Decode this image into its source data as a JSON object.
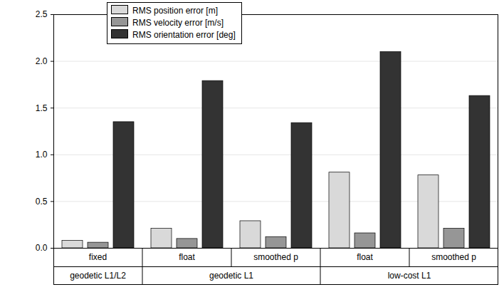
{
  "chart_data": {
    "type": "bar",
    "categories": [
      "fixed",
      "float",
      "smoothed p",
      "float",
      "smoothed p"
    ],
    "category_groups": [
      "geodetic L1/L2",
      "geodetic L1",
      "geodetic L1",
      "low-cost L1",
      "low-cost L1"
    ],
    "series": [
      {
        "name": "RMS position error [m]",
        "color": "#d9d9d9",
        "values": [
          0.08,
          0.21,
          0.29,
          0.81,
          0.78
        ]
      },
      {
        "name": "RMS velocity error [m/s]",
        "color": "#969696",
        "values": [
          0.06,
          0.1,
          0.12,
          0.16,
          0.21
        ]
      },
      {
        "name": "RMS orientation error [deg]",
        "color": "#333333",
        "values": [
          1.35,
          1.79,
          1.34,
          2.1,
          1.63
        ]
      }
    ],
    "ylim": [
      0,
      2.5
    ],
    "yticks": [
      {
        "value": 0,
        "label": "0.0"
      },
      {
        "value": 0.5,
        "label": "0.5"
      },
      {
        "value": 1,
        "label": "1.0"
      },
      {
        "value": 1.5,
        "label": "1.5"
      },
      {
        "value": 2,
        "label": "2.0"
      },
      {
        "value": 2.5,
        "label": "2.5"
      }
    ],
    "grid": true,
    "legend": "top-left"
  }
}
